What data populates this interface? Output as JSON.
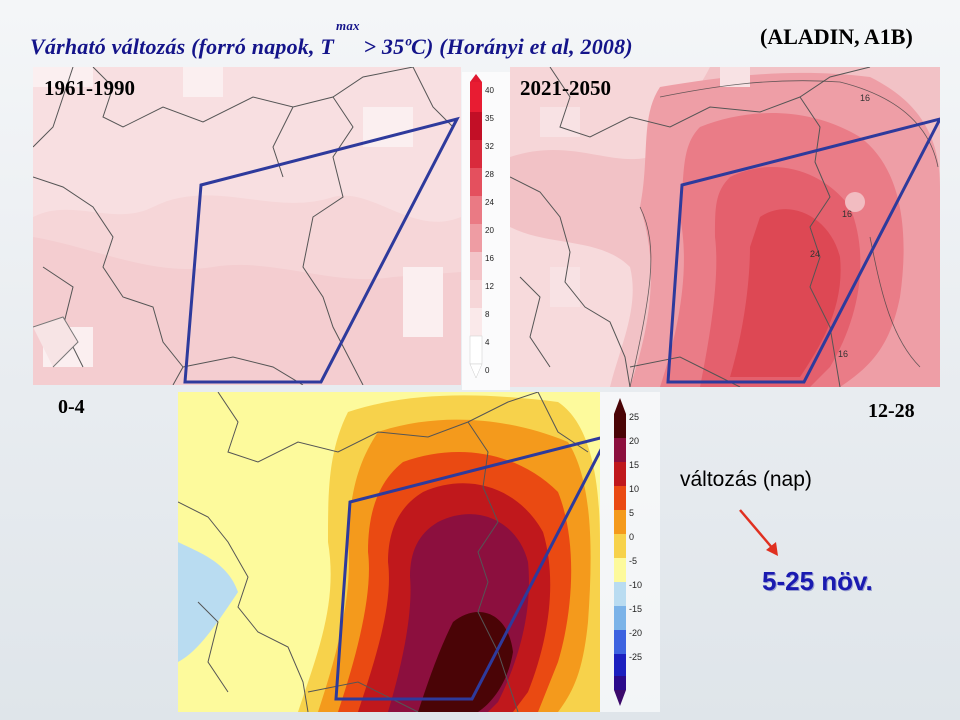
{
  "title": {
    "main": "Várható változás (forró napok, T",
    "subscript": "max",
    "tail": " > 35ºC) (Horányi et al, 2008)"
  },
  "model_label": "(ALADIN, A1B)",
  "panels": {
    "baseline": {
      "period": "1961-1990",
      "colorbar_ticks": [
        "40",
        "35",
        "32",
        "28",
        "24",
        "20",
        "16",
        "12",
        "8",
        "4",
        "0"
      ],
      "colors": [
        "#fae9ea",
        "#f6d6d8",
        "#f3c4c8",
        "#ee9ca3",
        "#ea7a84",
        "#e4505e",
        "#d92a3c",
        "#c20f26",
        "#e81c32"
      ]
    },
    "future": {
      "period": "2021-2050",
      "contour_labels": [
        "16",
        "16",
        "24",
        "16"
      ],
      "colors": [
        "#f7d8da",
        "#f2bcc1",
        "#ee9ea6",
        "#ea7c87",
        "#e4606d",
        "#dd4854"
      ]
    },
    "change": {
      "range_left": "0-4",
      "range_right": "12-28",
      "colorbar_ticks": [
        "25",
        "20",
        "15",
        "10",
        "5",
        "0",
        "-5",
        "-10",
        "-15",
        "-20",
        "-25"
      ],
      "colors": [
        "#fdfa9c",
        "#f7d24b",
        "#f49a1c",
        "#ea4a12",
        "#c0181c",
        "#8c0f3e",
        "#4a0406",
        "#b9dcf1",
        "#7bb3e8",
        "#3d63e0",
        "#1b1fbf",
        "#2a0a8c",
        "#3c0a6b"
      ]
    }
  },
  "annotation": {
    "change_label": "változás (nap)",
    "result": "5-25  növ."
  },
  "accent_colors": {
    "outline": "#2e3a9c",
    "arrow": "#e03020",
    "title": "#14148a"
  }
}
